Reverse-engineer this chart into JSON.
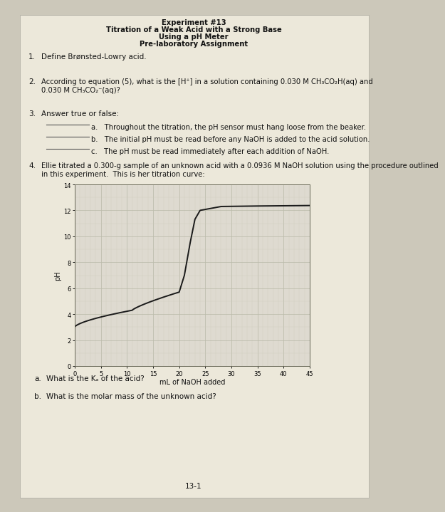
{
  "title_line1": "Experiment #13",
  "title_line2": "Titration of a Weak Acid with a Strong Base",
  "title_line3": "Using a pH Meter",
  "title_line4": "Pre-laboratory Assignment",
  "q1_text": "Define Brønsted-Lowry acid.",
  "q2_line1": "According to equation (5), what is the [H⁺] in a solution containing 0.030 M CH₃CO₂H(aq) and",
  "q2_line2": "0.030 M CH₃CO₂⁻(aq)?",
  "q3_text": "Answer true or false:",
  "q3a": "a.   Throughout the titration, the pH sensor must hang loose from the beaker.",
  "q3b": "b.   The initial pH must be read before any NaOH is added to the acid solution.",
  "q3c": "c.   The pH must be read immediately after each addition of NaOH.",
  "q4_line1": "Ellie titrated a 0.300-g sample of an unknown acid with a 0.0936 M NaOH solution using the procedure outlined",
  "q4_line2": "in this experiment.  This is her titration curve:",
  "qa_text": "What is the Kₐ of the acid?",
  "qb_text": "What is the molar mass of the unknown acid?",
  "footer": "13-1",
  "graph_xlabel": "mL of NaOH added",
  "graph_ylabel": "pH",
  "graph_xlim": [
    0,
    45
  ],
  "graph_ylim": [
    0,
    14
  ],
  "graph_xticks": [
    0,
    5,
    10,
    15,
    20,
    25,
    30,
    35,
    40,
    45
  ],
  "graph_yticks": [
    0,
    2,
    4,
    6,
    8,
    10,
    12,
    14
  ],
  "bg_color": "#ccc8ba",
  "paper_color": "#ece8da",
  "graph_bg": "#dedad0",
  "line_color": "#1a1a1a",
  "grid_major_color": "#bbbbaa",
  "grid_minor_color": "#ccccbb",
  "text_color": "#111111"
}
